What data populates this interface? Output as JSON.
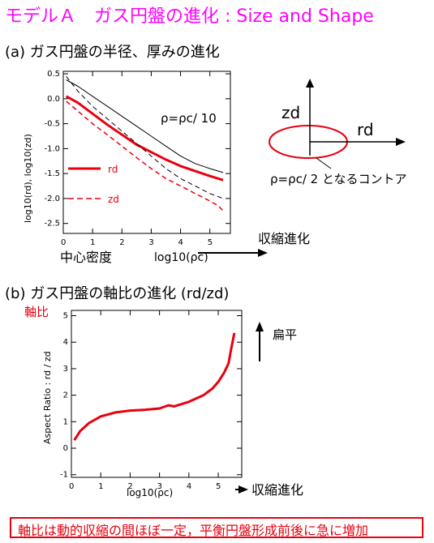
{
  "page": {
    "title": "モデルＡ　ガス円盤の進化 : Size and Shape",
    "section_a": "(a) ガス円盤の半径、厚みの進化",
    "section_b": "(b) ガス円盤の軸比の進化 (rd/zd)",
    "note": "軸比は動的収縮の間ほぼ一定，平衡円盤形成前後に急に増加",
    "colors": {
      "title": "#ff00ff",
      "red": "#e8000e",
      "black": "#000000"
    }
  },
  "diagram": {
    "z_label": "zd",
    "r_label": "rd",
    "contour_label": "ρ=ρc/ 2 となるコントア"
  },
  "chart_data": [
    {
      "type": "line",
      "xlabel": "log10(ρc)",
      "ylabel": "log10(rd),  log10(zd)",
      "xlim": [
        0,
        5.7
      ],
      "ylim": [
        -2.7,
        0.55
      ],
      "xticks": [
        0,
        1,
        2,
        3,
        4,
        5
      ],
      "yticks": [
        0.5,
        0.0,
        -0.5,
        -1.0,
        -1.5,
        -2.0,
        -2.5
      ],
      "ytick_labels": [
        "0.5",
        "0.0",
        "-0.5",
        "-1.0",
        "-1.5",
        "-2.0",
        "-2.5"
      ],
      "grid": false,
      "annotation": "ρ=ρc/ 10",
      "extra_labels": {
        "density": "中心密度",
        "evolution": "収縮進化"
      },
      "series": [
        {
          "name": "rd",
          "color": "#e8000e",
          "dash": false,
          "width": 3,
          "x": [
            0.1,
            0.5,
            1.0,
            1.5,
            2.0,
            2.5,
            3.0,
            3.5,
            4.0,
            4.5,
            5.0,
            5.45
          ],
          "y": [
            0.05,
            -0.08,
            -0.3,
            -0.52,
            -0.72,
            -0.92,
            -1.07,
            -1.22,
            -1.35,
            -1.45,
            -1.55,
            -1.63
          ]
        },
        {
          "name": "zd",
          "color": "#e8000e",
          "dash": true,
          "width": 1.5,
          "x": [
            0.1,
            0.5,
            1.0,
            1.5,
            2.0,
            2.5,
            3.0,
            3.5,
            4.0,
            4.5,
            5.0,
            5.3,
            5.45
          ],
          "y": [
            -0.05,
            -0.25,
            -0.5,
            -0.72,
            -0.95,
            -1.18,
            -1.4,
            -1.6,
            -1.75,
            -1.9,
            -2.05,
            -2.15,
            -2.25
          ]
        },
        {
          "name": "",
          "color": "#000000",
          "dash": false,
          "width": 1,
          "x": [
            0.1,
            0.5,
            1.0,
            1.5,
            2.0,
            2.5,
            3.0,
            3.5,
            4.0,
            4.5,
            5.0,
            5.45
          ],
          "y": [
            0.38,
            0.25,
            0.05,
            -0.15,
            -0.35,
            -0.55,
            -0.75,
            -0.95,
            -1.15,
            -1.3,
            -1.4,
            -1.48
          ]
        },
        {
          "name": "",
          "color": "#000000",
          "dash": true,
          "width": 1,
          "x": [
            0.1,
            0.5,
            1.0,
            1.5,
            2.0,
            2.5,
            3.0,
            3.5,
            4.0,
            4.5,
            5.0,
            5.45
          ],
          "y": [
            0.45,
            0.15,
            -0.15,
            -0.4,
            -0.65,
            -0.9,
            -1.15,
            -1.4,
            -1.6,
            -1.75,
            -1.9,
            -2.0
          ]
        }
      ]
    },
    {
      "type": "line",
      "xlabel": "log10(ρc)",
      "ylabel": "Aspect Ratio : rd / zd",
      "xlim": [
        0,
        5.8
      ],
      "ylim": [
        -1.1,
        5.2
      ],
      "xticks": [
        0,
        1,
        2,
        3,
        4,
        5
      ],
      "yticks": [
        -1,
        0,
        1,
        2,
        3,
        4,
        5
      ],
      "grid": false,
      "extra_labels": {
        "axis_ratio": "軸比",
        "flat": "扁平",
        "evolution": "収縮進化"
      },
      "series": [
        {
          "name": "",
          "color": "#e8000e",
          "width": 3,
          "x": [
            0.1,
            0.3,
            0.6,
            1.0,
            1.5,
            2.0,
            2.5,
            3.0,
            3.3,
            3.5,
            4.0,
            4.5,
            4.8,
            5.0,
            5.2,
            5.35,
            5.45,
            5.55
          ],
          "y": [
            0.3,
            0.65,
            0.95,
            1.2,
            1.35,
            1.42,
            1.45,
            1.5,
            1.62,
            1.58,
            1.75,
            2.0,
            2.25,
            2.5,
            2.85,
            3.2,
            3.8,
            4.35
          ]
        }
      ]
    }
  ]
}
